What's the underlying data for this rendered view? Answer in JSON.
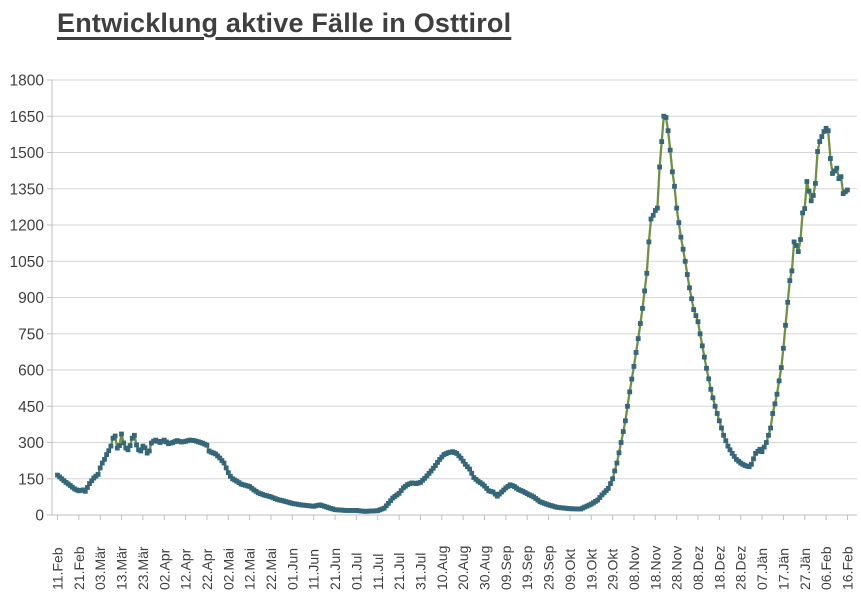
{
  "chart": {
    "title": "Entwicklung aktive Fälle in Osttirol"
  },
  "chart_data": {
    "type": "line",
    "title": "Entwicklung aktive Fälle in Osttirol",
    "series_name": "aktive Fälle",
    "xlabel": "",
    "ylabel": "",
    "ylim": [
      0,
      1800
    ],
    "y_ticks": [
      0,
      150,
      300,
      450,
      600,
      750,
      900,
      1050,
      1200,
      1350,
      1500,
      1650,
      1800
    ],
    "grid": true,
    "legend": "none",
    "x_label_interval_days": 10,
    "x_labels": [
      "11.Feb",
      "21.Feb",
      "03.Mär",
      "13.Mär",
      "23.Mär",
      "02.Apr",
      "12.Apr",
      "22.Apr",
      "02.Mai",
      "12.Mai",
      "22.Mai",
      "01.Jun",
      "11.Jun",
      "21.Jun",
      "01.Jul",
      "11.Jul",
      "21.Jul",
      "31.Jul",
      "10.Aug",
      "20.Aug",
      "30.Aug",
      "09.Sep",
      "19.Sep",
      "29.Sep",
      "09.Okt",
      "19.Okt",
      "29.Okt",
      "08.Nov",
      "18.Nov",
      "28.Nov",
      "08.Dez",
      "18.Dez",
      "28.Dez",
      "07.Jän",
      "17.Jän",
      "27.Jän",
      "06.Feb",
      "16.Feb"
    ],
    "line_color": "#6f9242",
    "marker_color": "#35677a",
    "grid_color": "#d6d6d6",
    "axis_color": "#bfbfbf",
    "text_color": "#3f3f3f",
    "points_day_value": [
      [
        0,
        165
      ],
      [
        2,
        150
      ],
      [
        4,
        135
      ],
      [
        6,
        122
      ],
      [
        8,
        108
      ],
      [
        10,
        100
      ],
      [
        12,
        104
      ],
      [
        13,
        98
      ],
      [
        15,
        130
      ],
      [
        17,
        153
      ],
      [
        19,
        168
      ],
      [
        20,
        195
      ],
      [
        21,
        215
      ],
      [
        22,
        230
      ],
      [
        23,
        250
      ],
      [
        24,
        266
      ],
      [
        25,
        285
      ],
      [
        26,
        318
      ],
      [
        27,
        327
      ],
      [
        28,
        277
      ],
      [
        29,
        287
      ],
      [
        30,
        335
      ],
      [
        31,
        298
      ],
      [
        32,
        277
      ],
      [
        33,
        270
      ],
      [
        34,
        287
      ],
      [
        35,
        318
      ],
      [
        36,
        330
      ],
      [
        37,
        290
      ],
      [
        38,
        270
      ],
      [
        39,
        265
      ],
      [
        40,
        285
      ],
      [
        41,
        278
      ],
      [
        42,
        256
      ],
      [
        43,
        265
      ],
      [
        44,
        298
      ],
      [
        45,
        306
      ],
      [
        46,
        310
      ],
      [
        48,
        300
      ],
      [
        50,
        310
      ],
      [
        52,
        295
      ],
      [
        54,
        300
      ],
      [
        56,
        308
      ],
      [
        58,
        302
      ],
      [
        60,
        305
      ],
      [
        62,
        310
      ],
      [
        64,
        308
      ],
      [
        66,
        303
      ],
      [
        68,
        297
      ],
      [
        70,
        289
      ],
      [
        71,
        265
      ],
      [
        72,
        260
      ],
      [
        74,
        253
      ],
      [
        76,
        236
      ],
      [
        78,
        215
      ],
      [
        79,
        195
      ],
      [
        80,
        175
      ],
      [
        81,
        160
      ],
      [
        82,
        150
      ],
      [
        84,
        140
      ],
      [
        86,
        128
      ],
      [
        90,
        118
      ],
      [
        92,
        104
      ],
      [
        94,
        92
      ],
      [
        97,
        82
      ],
      [
        100,
        75
      ],
      [
        103,
        64
      ],
      [
        106,
        58
      ],
      [
        110,
        48
      ],
      [
        114,
        42
      ],
      [
        120,
        36
      ],
      [
        123,
        42
      ],
      [
        126,
        33
      ],
      [
        130,
        22
      ],
      [
        135,
        19
      ],
      [
        140,
        19
      ],
      [
        144,
        15
      ],
      [
        150,
        18
      ],
      [
        153,
        28
      ],
      [
        155,
        48
      ],
      [
        157,
        70
      ],
      [
        160,
        90
      ],
      [
        162,
        112
      ],
      [
        164,
        126
      ],
      [
        166,
        133
      ],
      [
        168,
        130
      ],
      [
        170,
        135
      ],
      [
        172,
        152
      ],
      [
        175,
        182
      ],
      [
        177,
        205
      ],
      [
        179,
        230
      ],
      [
        181,
        250
      ],
      [
        183,
        258
      ],
      [
        185,
        262
      ],
      [
        187,
        255
      ],
      [
        189,
        235
      ],
      [
        191,
        210
      ],
      [
        193,
        190
      ],
      [
        195,
        155
      ],
      [
        197,
        140
      ],
      [
        199,
        128
      ],
      [
        200,
        120
      ],
      [
        202,
        100
      ],
      [
        204,
        95
      ],
      [
        206,
        78
      ],
      [
        208,
        95
      ],
      [
        210,
        112
      ],
      [
        212,
        125
      ],
      [
        214,
        118
      ],
      [
        216,
        105
      ],
      [
        218,
        98
      ],
      [
        220,
        88
      ],
      [
        223,
        75
      ],
      [
        226,
        55
      ],
      [
        230,
        42
      ],
      [
        234,
        32
      ],
      [
        240,
        26
      ],
      [
        245,
        25
      ],
      [
        250,
        45
      ],
      [
        253,
        62
      ],
      [
        255,
        83
      ],
      [
        258,
        110
      ],
      [
        260,
        150
      ],
      [
        262,
        215
      ],
      [
        264,
        300
      ],
      [
        266,
        390
      ],
      [
        268,
        510
      ],
      [
        270,
        615
      ],
      [
        272,
        730
      ],
      [
        274,
        855
      ],
      [
        276,
        1000
      ],
      [
        277,
        1130
      ],
      [
        278,
        1225
      ],
      [
        279,
        1240
      ],
      [
        280,
        1260
      ],
      [
        281,
        1270
      ],
      [
        282,
        1440
      ],
      [
        283,
        1545
      ],
      [
        284,
        1650
      ],
      [
        285,
        1645
      ],
      [
        286,
        1590
      ],
      [
        287,
        1510
      ],
      [
        288,
        1420
      ],
      [
        289,
        1360
      ],
      [
        290,
        1270
      ],
      [
        292,
        1150
      ],
      [
        294,
        1050
      ],
      [
        296,
        940
      ],
      [
        298,
        850
      ],
      [
        300,
        800
      ],
      [
        302,
        700
      ],
      [
        304,
        607
      ],
      [
        306,
        520
      ],
      [
        308,
        450
      ],
      [
        310,
        390
      ],
      [
        312,
        330
      ],
      [
        314,
        285
      ],
      [
        316,
        255
      ],
      [
        318,
        230
      ],
      [
        320,
        215
      ],
      [
        322,
        205
      ],
      [
        324,
        200
      ],
      [
        325,
        210
      ],
      [
        327,
        255
      ],
      [
        329,
        272
      ],
      [
        330,
        262
      ],
      [
        332,
        300
      ],
      [
        334,
        360
      ],
      [
        335,
        420
      ],
      [
        337,
        500
      ],
      [
        339,
        610
      ],
      [
        340,
        690
      ],
      [
        341,
        785
      ],
      [
        342,
        880
      ],
      [
        343,
        970
      ],
      [
        344,
        1010
      ],
      [
        345,
        1130
      ],
      [
        346,
        1115
      ],
      [
        347,
        1090
      ],
      [
        348,
        1140
      ],
      [
        349,
        1250
      ],
      [
        350,
        1268
      ],
      [
        351,
        1380
      ],
      [
        352,
        1340
      ],
      [
        353,
        1300
      ],
      [
        354,
        1322
      ],
      [
        355,
        1372
      ],
      [
        356,
        1504
      ],
      [
        357,
        1545
      ],
      [
        358,
        1566
      ],
      [
        359,
        1587
      ],
      [
        360,
        1600
      ],
      [
        361,
        1590
      ],
      [
        362,
        1475
      ],
      [
        363,
        1413
      ],
      [
        365,
        1435
      ],
      [
        366,
        1392
      ],
      [
        367,
        1400
      ],
      [
        368,
        1330
      ],
      [
        370,
        1345
      ]
    ]
  }
}
